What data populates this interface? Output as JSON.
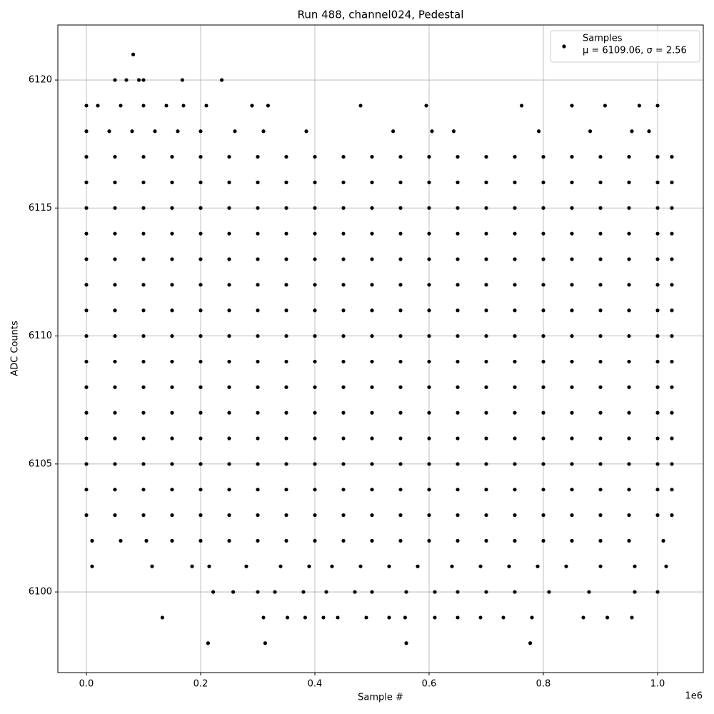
{
  "chart_data": {
    "type": "scatter",
    "title": "Run 488, channel024, Pedestal",
    "xlabel": "Sample #",
    "ylabel": "ADC Counts",
    "x_offset_label": "1e6",
    "legend_note": "μ = 6109.06, σ = 2.56",
    "legend": "upper right",
    "grid": true,
    "xlim": [
      -50000,
      1080000
    ],
    "ylim": [
      6096.85,
      6122.15
    ],
    "xticks": [
      {
        "value": 0,
        "label": "0.0"
      },
      {
        "value": 200000,
        "label": "0.2"
      },
      {
        "value": 400000,
        "label": "0.4"
      },
      {
        "value": 600000,
        "label": "0.6"
      },
      {
        "value": 800000,
        "label": "0.8"
      },
      {
        "value": 1000000,
        "label": "1.0"
      }
    ],
    "yticks": [
      6100,
      6105,
      6110,
      6115,
      6120
    ],
    "x": [
      82000,
      50000,
      70000,
      92000,
      100000,
      168000,
      237000,
      0,
      20000,
      60000,
      100000,
      140000,
      170000,
      210000,
      290000,
      318000,
      480000,
      595000,
      762000,
      850000,
      908000,
      968000,
      1000000,
      0,
      40000,
      80000,
      120000,
      160000,
      200000,
      260000,
      310000,
      385000,
      537000,
      605000,
      643000,
      792000,
      882000,
      955000,
      985000,
      10000,
      60000,
      105000,
      150000,
      200000,
      250000,
      300000,
      350000,
      400000,
      450000,
      500000,
      550000,
      600000,
      650000,
      700000,
      750000,
      800000,
      850000,
      900000,
      950000,
      1010000,
      10000,
      115000,
      185000,
      215000,
      280000,
      340000,
      390000,
      430000,
      480000,
      530000,
      580000,
      640000,
      690000,
      740000,
      790000,
      840000,
      900000,
      960000,
      1015000,
      222000,
      257000,
      300000,
      330000,
      380000,
      420000,
      470000,
      500000,
      560000,
      610000,
      650000,
      700000,
      750000,
      810000,
      880000,
      960000,
      1000000,
      133000,
      310000,
      352000,
      383000,
      415000,
      440000,
      490000,
      530000,
      558000,
      610000,
      650000,
      690000,
      730000,
      780000,
      870000,
      912000,
      955000,
      213000,
      313000,
      560000,
      777000,
      0,
      50000,
      100000,
      150000,
      200000,
      250000,
      300000,
      350000,
      400000,
      450000,
      500000,
      550000,
      600000,
      650000,
      700000,
      750000,
      800000,
      850000,
      900000,
      950000,
      1000000,
      1025000,
      0,
      50000,
      100000,
      150000,
      200000,
      250000,
      300000,
      350000,
      400000,
      450000,
      500000,
      550000,
      600000,
      650000,
      700000,
      750000,
      800000,
      850000,
      900000,
      950000,
      1000000,
      1025000,
      0,
      50000,
      100000,
      150000,
      200000,
      250000,
      300000,
      350000,
      400000,
      450000,
      500000,
      550000,
      600000,
      650000,
      700000,
      750000,
      800000,
      850000,
      900000,
      950000,
      1000000,
      1025000,
      0,
      50000,
      100000,
      150000,
      200000,
      250000,
      300000,
      350000,
      400000,
      450000,
      500000,
      550000,
      600000,
      650000,
      700000,
      750000,
      800000,
      850000,
      900000,
      950000,
      1000000,
      1025000,
      0,
      50000,
      100000,
      150000,
      200000,
      250000,
      300000,
      350000,
      400000,
      450000,
      500000,
      550000,
      600000,
      650000,
      700000,
      750000,
      800000,
      850000,
      900000,
      950000,
      1000000,
      1025000,
      0,
      50000,
      100000,
      150000,
      200000,
      250000,
      300000,
      350000,
      400000,
      450000,
      500000,
      550000,
      600000,
      650000,
      700000,
      750000,
      800000,
      850000,
      900000,
      950000,
      1000000,
      1025000,
      0,
      50000,
      100000,
      150000,
      200000,
      250000,
      300000,
      350000,
      400000,
      450000,
      500000,
      550000,
      600000,
      650000,
      700000,
      750000,
      800000,
      850000,
      900000,
      950000,
      1000000,
      1025000,
      0,
      50000,
      100000,
      150000,
      200000,
      250000,
      300000,
      350000,
      400000,
      450000,
      500000,
      550000,
      600000,
      650000,
      700000,
      750000,
      800000,
      850000,
      900000,
      950000,
      1000000,
      1025000,
      0,
      50000,
      100000,
      150000,
      200000,
      250000,
      300000,
      350000,
      400000,
      450000,
      500000,
      550000,
      600000,
      650000,
      700000,
      750000,
      800000,
      850000,
      900000,
      950000,
      1000000,
      1025000,
      0,
      50000,
      100000,
      150000,
      200000,
      250000,
      300000,
      350000,
      400000,
      450000,
      500000,
      550000,
      600000,
      650000,
      700000,
      750000,
      800000,
      850000,
      900000,
      950000,
      1000000,
      1025000,
      0,
      50000,
      100000,
      150000,
      200000,
      250000,
      300000,
      350000,
      400000,
      450000,
      500000,
      550000,
      600000,
      650000,
      700000,
      750000,
      800000,
      850000,
      900000,
      950000,
      1000000,
      1025000,
      0,
      50000,
      100000,
      150000,
      200000,
      250000,
      300000,
      350000,
      400000,
      450000,
      500000,
      550000,
      600000,
      650000,
      700000,
      750000,
      800000,
      850000,
      900000,
      950000,
      1000000,
      1025000,
      0,
      50000,
      100000,
      150000,
      200000,
      250000,
      300000,
      350000,
      400000,
      450000,
      500000,
      550000,
      600000,
      650000,
      700000,
      750000,
      800000,
      850000,
      900000,
      950000,
      1000000,
      1025000,
      0,
      50000,
      100000,
      150000,
      200000,
      250000,
      300000,
      350000,
      400000,
      450000,
      500000,
      550000,
      600000,
      650000,
      700000,
      750000,
      800000,
      850000,
      900000,
      950000,
      1000000,
      1025000,
      0,
      50000,
      100000,
      150000,
      200000,
      250000,
      300000,
      350000,
      400000,
      450000,
      500000,
      550000,
      600000,
      650000,
      700000,
      750000,
      800000,
      850000,
      900000,
      950000,
      1000000,
      1025000
    ],
    "series": [
      {
        "name": "Samples",
        "color": "#000000",
        "values": [
          6121,
          6120,
          6120,
          6120,
          6120,
          6120,
          6120,
          6119,
          6119,
          6119,
          6119,
          6119,
          6119,
          6119,
          6119,
          6119,
          6119,
          6119,
          6119,
          6119,
          6119,
          6119,
          6119,
          6118,
          6118,
          6118,
          6118,
          6118,
          6118,
          6118,
          6118,
          6118,
          6118,
          6118,
          6118,
          6118,
          6118,
          6118,
          6118,
          6102,
          6102,
          6102,
          6102,
          6102,
          6102,
          6102,
          6102,
          6102,
          6102,
          6102,
          6102,
          6102,
          6102,
          6102,
          6102,
          6102,
          6102,
          6102,
          6102,
          6102,
          6101,
          6101,
          6101,
          6101,
          6101,
          6101,
          6101,
          6101,
          6101,
          6101,
          6101,
          6101,
          6101,
          6101,
          6101,
          6101,
          6101,
          6101,
          6101,
          6100,
          6100,
          6100,
          6100,
          6100,
          6100,
          6100,
          6100,
          6100,
          6100,
          6100,
          6100,
          6100,
          6100,
          6100,
          6100,
          6100,
          6099,
          6099,
          6099,
          6099,
          6099,
          6099,
          6099,
          6099,
          6099,
          6099,
          6099,
          6099,
          6099,
          6099,
          6099,
          6099,
          6099,
          6098,
          6098,
          6098,
          6098,
          6103,
          6103,
          6103,
          6103,
          6103,
          6103,
          6103,
          6103,
          6103,
          6103,
          6103,
          6103,
          6103,
          6103,
          6103,
          6103,
          6103,
          6103,
          6103,
          6103,
          6103,
          6103,
          6104,
          6104,
          6104,
          6104,
          6104,
          6104,
          6104,
          6104,
          6104,
          6104,
          6104,
          6104,
          6104,
          6104,
          6104,
          6104,
          6104,
          6104,
          6104,
          6104,
          6104,
          6104,
          6105,
          6105,
          6105,
          6105,
          6105,
          6105,
          6105,
          6105,
          6105,
          6105,
          6105,
          6105,
          6105,
          6105,
          6105,
          6105,
          6105,
          6105,
          6105,
          6105,
          6105,
          6105,
          6106,
          6106,
          6106,
          6106,
          6106,
          6106,
          6106,
          6106,
          6106,
          6106,
          6106,
          6106,
          6106,
          6106,
          6106,
          6106,
          6106,
          6106,
          6106,
          6106,
          6106,
          6106,
          6107,
          6107,
          6107,
          6107,
          6107,
          6107,
          6107,
          6107,
          6107,
          6107,
          6107,
          6107,
          6107,
          6107,
          6107,
          6107,
          6107,
          6107,
          6107,
          6107,
          6107,
          6107,
          6108,
          6108,
          6108,
          6108,
          6108,
          6108,
          6108,
          6108,
          6108,
          6108,
          6108,
          6108,
          6108,
          6108,
          6108,
          6108,
          6108,
          6108,
          6108,
          6108,
          6108,
          6108,
          6109,
          6109,
          6109,
          6109,
          6109,
          6109,
          6109,
          6109,
          6109,
          6109,
          6109,
          6109,
          6109,
          6109,
          6109,
          6109,
          6109,
          6109,
          6109,
          6109,
          6109,
          6109,
          6110,
          6110,
          6110,
          6110,
          6110,
          6110,
          6110,
          6110,
          6110,
          6110,
          6110,
          6110,
          6110,
          6110,
          6110,
          6110,
          6110,
          6110,
          6110,
          6110,
          6110,
          6110,
          6111,
          6111,
          6111,
          6111,
          6111,
          6111,
          6111,
          6111,
          6111,
          6111,
          6111,
          6111,
          6111,
          6111,
          6111,
          6111,
          6111,
          6111,
          6111,
          6111,
          6111,
          6111,
          6112,
          6112,
          6112,
          6112,
          6112,
          6112,
          6112,
          6112,
          6112,
          6112,
          6112,
          6112,
          6112,
          6112,
          6112,
          6112,
          6112,
          6112,
          6112,
          6112,
          6112,
          6112,
          6113,
          6113,
          6113,
          6113,
          6113,
          6113,
          6113,
          6113,
          6113,
          6113,
          6113,
          6113,
          6113,
          6113,
          6113,
          6113,
          6113,
          6113,
          6113,
          6113,
          6113,
          6113,
          6114,
          6114,
          6114,
          6114,
          6114,
          6114,
          6114,
          6114,
          6114,
          6114,
          6114,
          6114,
          6114,
          6114,
          6114,
          6114,
          6114,
          6114,
          6114,
          6114,
          6114,
          6114,
          6115,
          6115,
          6115,
          6115,
          6115,
          6115,
          6115,
          6115,
          6115,
          6115,
          6115,
          6115,
          6115,
          6115,
          6115,
          6115,
          6115,
          6115,
          6115,
          6115,
          6115,
          6115,
          6116,
          6116,
          6116,
          6116,
          6116,
          6116,
          6116,
          6116,
          6116,
          6116,
          6116,
          6116,
          6116,
          6116,
          6116,
          6116,
          6116,
          6116,
          6116,
          6116,
          6116,
          6116,
          6117,
          6117,
          6117,
          6117,
          6117,
          6117,
          6117,
          6117,
          6117,
          6117,
          6117,
          6117,
          6117,
          6117,
          6117,
          6117,
          6117,
          6117,
          6117,
          6117,
          6117,
          6117
        ]
      }
    ]
  }
}
